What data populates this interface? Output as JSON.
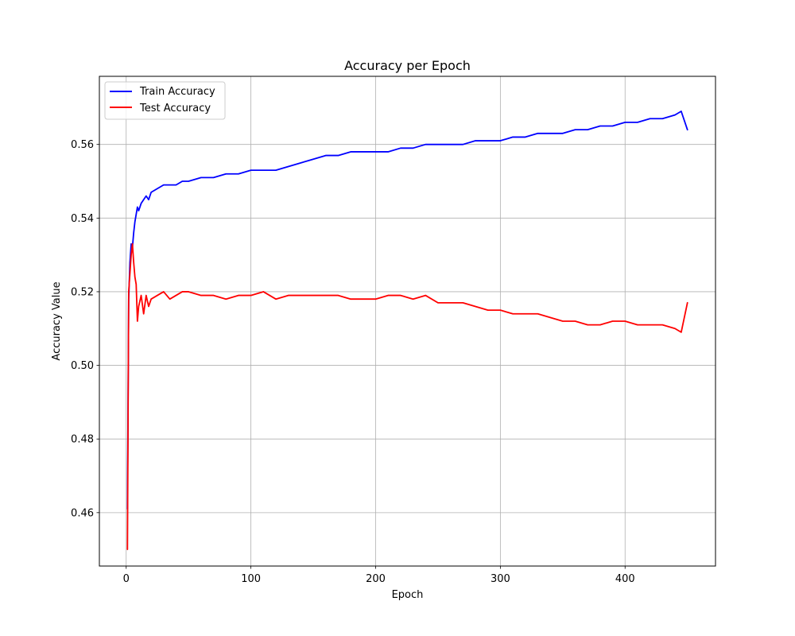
{
  "chart_data": {
    "type": "line",
    "title": "Accuracy per Epoch",
    "xlabel": "Epoch",
    "ylabel": "Accuracy Value",
    "xlim": [
      -21.5,
      472.5
    ],
    "ylim": [
      0.4455,
      0.5785
    ],
    "xticks": [
      0,
      100,
      200,
      300,
      400
    ],
    "yticks": [
      0.46,
      0.48,
      0.5,
      0.52,
      0.54,
      0.56
    ],
    "ytick_labels": [
      "0.46",
      "0.48",
      "0.50",
      "0.52",
      "0.54",
      "0.56"
    ],
    "grid": true,
    "legend_position": "upper-left",
    "series": [
      {
        "name": "Train Accuracy",
        "color": "#0000ff",
        "x": [
          1,
          2,
          3,
          4,
          5,
          6,
          7,
          8,
          9,
          10,
          12,
          14,
          16,
          18,
          20,
          25,
          30,
          35,
          40,
          45,
          50,
          60,
          70,
          80,
          90,
          100,
          110,
          120,
          130,
          140,
          150,
          160,
          170,
          180,
          190,
          200,
          210,
          220,
          230,
          240,
          250,
          260,
          270,
          280,
          290,
          300,
          310,
          320,
          330,
          340,
          350,
          360,
          370,
          380,
          390,
          400,
          410,
          420,
          430,
          440,
          445,
          450
        ],
        "values": [
          0.461,
          0.518,
          0.528,
          0.533,
          0.532,
          0.536,
          0.539,
          0.541,
          0.543,
          0.542,
          0.544,
          0.545,
          0.546,
          0.545,
          0.547,
          0.548,
          0.549,
          0.549,
          0.549,
          0.55,
          0.55,
          0.551,
          0.551,
          0.552,
          0.552,
          0.553,
          0.553,
          0.553,
          0.554,
          0.555,
          0.556,
          0.557,
          0.557,
          0.558,
          0.558,
          0.558,
          0.558,
          0.559,
          0.559,
          0.56,
          0.56,
          0.56,
          0.56,
          0.561,
          0.561,
          0.561,
          0.562,
          0.562,
          0.563,
          0.563,
          0.563,
          0.564,
          0.564,
          0.565,
          0.565,
          0.566,
          0.566,
          0.567,
          0.567,
          0.568,
          0.569,
          0.564
        ]
      },
      {
        "name": "Test Accuracy",
        "color": "#ff0000",
        "x": [
          1,
          2,
          3,
          4,
          5,
          6,
          7,
          8,
          9,
          10,
          12,
          14,
          16,
          18,
          20,
          25,
          30,
          35,
          40,
          45,
          50,
          60,
          70,
          80,
          90,
          100,
          110,
          120,
          130,
          140,
          150,
          160,
          170,
          180,
          190,
          200,
          210,
          220,
          230,
          240,
          250,
          260,
          270,
          280,
          290,
          300,
          310,
          320,
          330,
          340,
          350,
          360,
          370,
          380,
          390,
          400,
          410,
          420,
          430,
          440,
          445,
          450
        ],
        "values": [
          0.45,
          0.52,
          0.525,
          0.53,
          0.533,
          0.528,
          0.524,
          0.522,
          0.512,
          0.516,
          0.519,
          0.514,
          0.519,
          0.516,
          0.518,
          0.519,
          0.52,
          0.518,
          0.519,
          0.52,
          0.52,
          0.519,
          0.519,
          0.518,
          0.519,
          0.519,
          0.52,
          0.518,
          0.519,
          0.519,
          0.519,
          0.519,
          0.519,
          0.518,
          0.518,
          0.518,
          0.519,
          0.519,
          0.518,
          0.519,
          0.517,
          0.517,
          0.517,
          0.516,
          0.515,
          0.515,
          0.514,
          0.514,
          0.514,
          0.513,
          0.512,
          0.512,
          0.511,
          0.511,
          0.512,
          0.512,
          0.511,
          0.511,
          0.511,
          0.51,
          0.509,
          0.517
        ]
      }
    ]
  }
}
